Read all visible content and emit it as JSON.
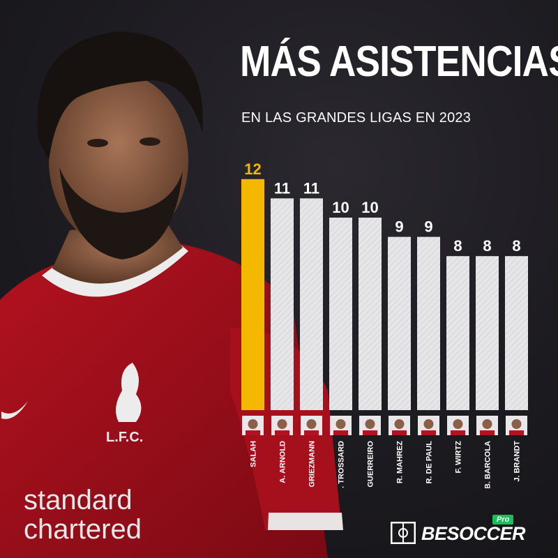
{
  "header": {
    "title": "MÁS ASISTENCIAS",
    "subtitle": "EN LAS GRANDES LIGAS EN 2023"
  },
  "colors": {
    "highlight": "#f5b800",
    "bar": "#e4e4e6",
    "value_text": "#ffffff",
    "highlight_text": "#f5b800"
  },
  "chart_data": {
    "type": "bar",
    "title": "MÁS ASISTENCIAS",
    "subtitle": "EN LAS GRANDES LIGAS EN 2023",
    "categories": [
      "SALAH",
      "A. ARNOLD",
      "GRIEZMANN",
      "L. TROSSARD",
      "R. GUERREIRO",
      "R. MAHREZ",
      "R. DE PAUL",
      "F. WIRTZ",
      "B. BARCOLA",
      "J. BRANDT"
    ],
    "values": [
      12,
      11,
      11,
      10,
      10,
      9,
      9,
      8,
      8,
      8
    ],
    "highlight_index": 0,
    "xlabel": "",
    "ylabel": "",
    "grid": false,
    "legend": "none"
  },
  "jersey": {
    "crest_text": "L.F.C.",
    "sponsor_line1": "standard",
    "sponsor_line2": "chartered"
  },
  "logo": {
    "badge": "Pro",
    "text": "BESOCCER"
  }
}
